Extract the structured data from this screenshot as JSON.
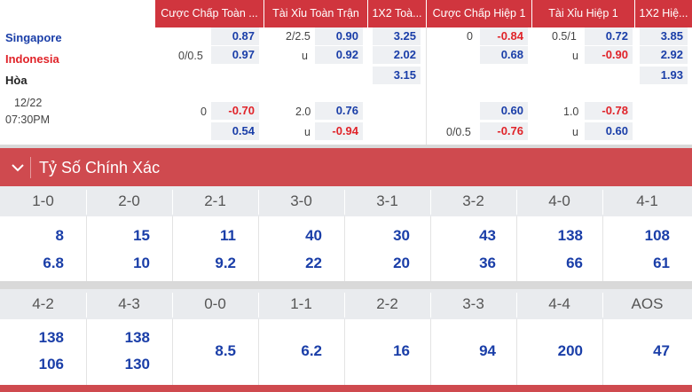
{
  "odds": {
    "headers": [
      "Cược Chấp Toàn ...",
      "Tài Xỉu Toàn Trận",
      "1X2 Toà...",
      "Cược Chấp Hiệp 1",
      "Tài Xỉu Hiệp 1",
      "1X2 Hiệ..."
    ],
    "teams": {
      "home": "Singapore",
      "away": "Indonesia",
      "draw": "Hòa"
    },
    "match_date": "12/22",
    "match_time": "07:30PM",
    "rows": [
      {
        "hcp_line": "",
        "hcp_odd": "0.87",
        "ou_line": "2/2.5",
        "ou_odd": "0.90",
        "x12": "3.25",
        "h1_hcp_line": "0",
        "h1_hcp_odd": "-0.84",
        "h1_ou_line": "0.5/1",
        "h1_ou_odd": "0.72",
        "h1_x12": "3.85"
      },
      {
        "hcp_line": "0/0.5",
        "hcp_odd": "0.97",
        "ou_line": "u",
        "ou_odd": "0.92",
        "x12": "2.02",
        "h1_hcp_line": "",
        "h1_hcp_odd": "0.68",
        "h1_ou_line": "u",
        "h1_ou_odd": "-0.90",
        "h1_x12": "2.92"
      },
      {
        "x12": "3.15",
        "h1_x12": "1.93"
      },
      {
        "hcp_line": "0",
        "hcp_odd": "-0.70",
        "ou_line": "2.0",
        "ou_odd": "0.76",
        "h1_hcp_line": "",
        "h1_hcp_odd": "0.60",
        "h1_ou_line": "1.0",
        "h1_ou_odd": "-0.78"
      },
      {
        "hcp_line": "",
        "hcp_odd": "0.54",
        "ou_line": "u",
        "ou_odd": "-0.94",
        "h1_hcp_line": "0/0.5",
        "h1_hcp_odd": "-0.76",
        "h1_ou_line": "u",
        "h1_ou_odd": "0.60"
      }
    ]
  },
  "section": {
    "title": "Tỷ Số Chính Xác",
    "icon": "chevron-down-icon"
  },
  "correct_score": {
    "block1": {
      "scores": [
        "1-0",
        "2-0",
        "2-1",
        "3-0",
        "3-1",
        "3-2",
        "4-0",
        "4-1"
      ],
      "home_odds": [
        "8",
        "15",
        "11",
        "40",
        "30",
        "43",
        "138",
        "108"
      ],
      "away_odds": [
        "6.8",
        "10",
        "9.2",
        "22",
        "20",
        "36",
        "66",
        "61"
      ]
    },
    "block2": {
      "scores": [
        "4-2",
        "4-3",
        "0-0",
        "1-1",
        "2-2",
        "3-3",
        "4-4",
        "AOS"
      ],
      "home_odds": [
        "138",
        "138"
      ],
      "away_odds": [
        "106",
        "130"
      ],
      "single_odds": [
        "8.5",
        "6.2",
        "16",
        "94",
        "200",
        "47"
      ]
    }
  },
  "colors": {
    "header_red": "#d0353e",
    "section_red": "#cf4a4f",
    "odd_blue": "#1a3ea8",
    "odd_red": "#e02329",
    "cell_bg": "#eef0f3"
  }
}
